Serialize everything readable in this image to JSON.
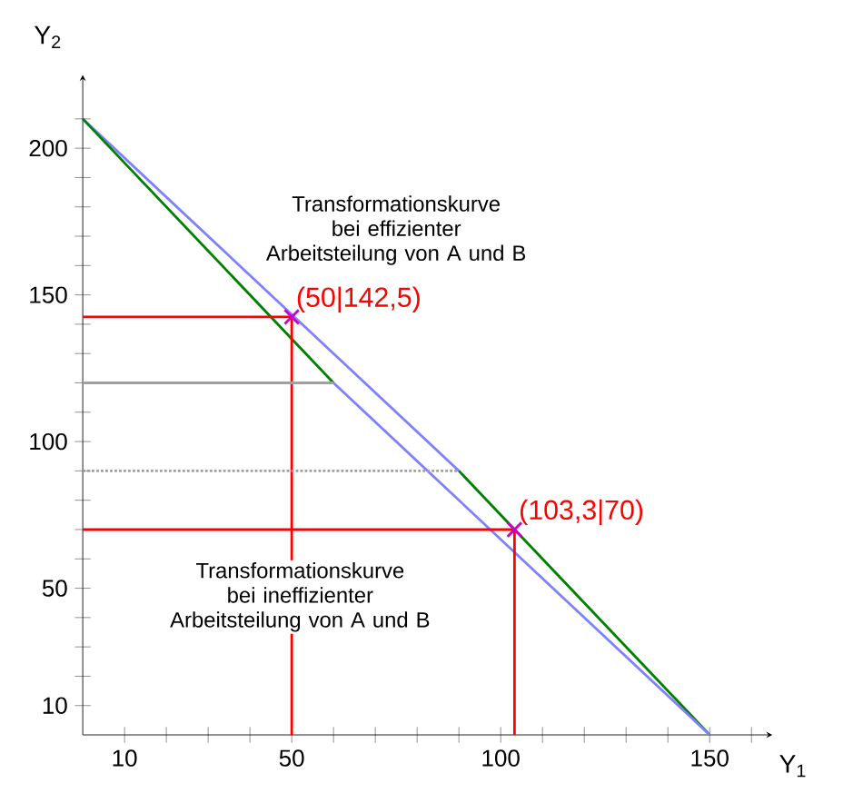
{
  "chart_data": {
    "type": "line",
    "xlabel": "Y$_{1}$",
    "ylabel": "Y$_{2}$",
    "xlim": [
      0,
      165
    ],
    "ylim": [
      0,
      225
    ],
    "xticks": [
      {
        "value": 10,
        "label": "10"
      },
      {
        "value": 20,
        "label": null
      },
      {
        "value": 30,
        "label": null
      },
      {
        "value": 40,
        "label": null
      },
      {
        "value": 50,
        "label": "50"
      },
      {
        "value": 60,
        "label": null
      },
      {
        "value": 70,
        "label": null
      },
      {
        "value": 80,
        "label": null
      },
      {
        "value": 90,
        "label": null
      },
      {
        "value": 100,
        "label": "100"
      },
      {
        "value": 110,
        "label": null
      },
      {
        "value": 120,
        "label": null
      },
      {
        "value": 130,
        "label": null
      },
      {
        "value": 140,
        "label": null
      },
      {
        "value": 150,
        "label": "150"
      },
      {
        "value": 160,
        "label": null
      }
    ],
    "yticks": [
      {
        "value": 10,
        "label": "10"
      },
      {
        "value": 20,
        "label": null
      },
      {
        "value": 30,
        "label": null
      },
      {
        "value": 40,
        "label": null
      },
      {
        "value": 50,
        "label": "50"
      },
      {
        "value": 60,
        "label": null
      },
      {
        "value": 70,
        "label": null
      },
      {
        "value": 80,
        "label": null
      },
      {
        "value": 90,
        "label": null
      },
      {
        "value": 100,
        "label": "100"
      },
      {
        "value": 110,
        "label": null
      },
      {
        "value": 120,
        "label": null
      },
      {
        "value": 130,
        "label": null
      },
      {
        "value": 140,
        "label": null
      },
      {
        "value": 150,
        "label": "150"
      },
      {
        "value": 160,
        "label": null
      },
      {
        "value": 170,
        "label": null
      },
      {
        "value": 180,
        "label": null
      },
      {
        "value": 190,
        "label": null
      },
      {
        "value": 200,
        "label": "200"
      },
      {
        "value": 210,
        "label": null
      }
    ],
    "grid": false,
    "marker": "none",
    "line_style": "solid",
    "series": [
      {
        "color": "#8080ff",
        "x": [
          0,
          90
        ],
        "values": [
          210,
          90
        ]
      },
      {
        "color": "#008000",
        "x": [
          90,
          150
        ],
        "values": [
          90,
          0
        ]
      },
      {
        "color": "#008000",
        "x": [
          0,
          60
        ],
        "values": [
          210,
          120
        ]
      },
      {
        "color": "#8080ff",
        "x": [
          60,
          150
        ],
        "values": [
          120,
          0
        ]
      },
      {
        "color": "#ff0000",
        "x": [
          0,
          50
        ],
        "values": [
          142.5,
          142.5
        ]
      },
      {
        "color": "#ff0000",
        "x": [
          50,
          50
        ],
        "values": [
          0,
          142.5
        ]
      },
      {
        "color": "#ff0000",
        "x": [
          0,
          103.3
        ],
        "values": [
          70,
          70
        ]
      },
      {
        "color": "#ff0000",
        "x": [
          103.3,
          103.3
        ],
        "values": [
          0,
          70
        ]
      },
      {
        "color": "#a0a0a0",
        "x": [
          0,
          60
        ],
        "values": [
          120,
          120
        ]
      },
      {
        "color": "#a0a0a0",
        "x": [
          0,
          90
        ],
        "values": [
          90,
          90
        ],
        "line_style": "dotted"
      },
      {
        "type": "scatter",
        "marker": "cross",
        "color": "#cc00cc",
        "x": [
          50,
          103.3
        ],
        "values": [
          142.5,
          70
        ]
      }
    ],
    "annotations": [
      {
        "text": "(50|142,5)",
        "x": 50,
        "y": 142.5
      },
      {
        "text": "(103,3|70)",
        "x": 103.3,
        "y": 70
      },
      "Transformationskurve bei effizienter Arbeitsteilung von A und B",
      "Transformationskurve bei ineffizienter Arbeitsteilung von A und B"
    ]
  }
}
